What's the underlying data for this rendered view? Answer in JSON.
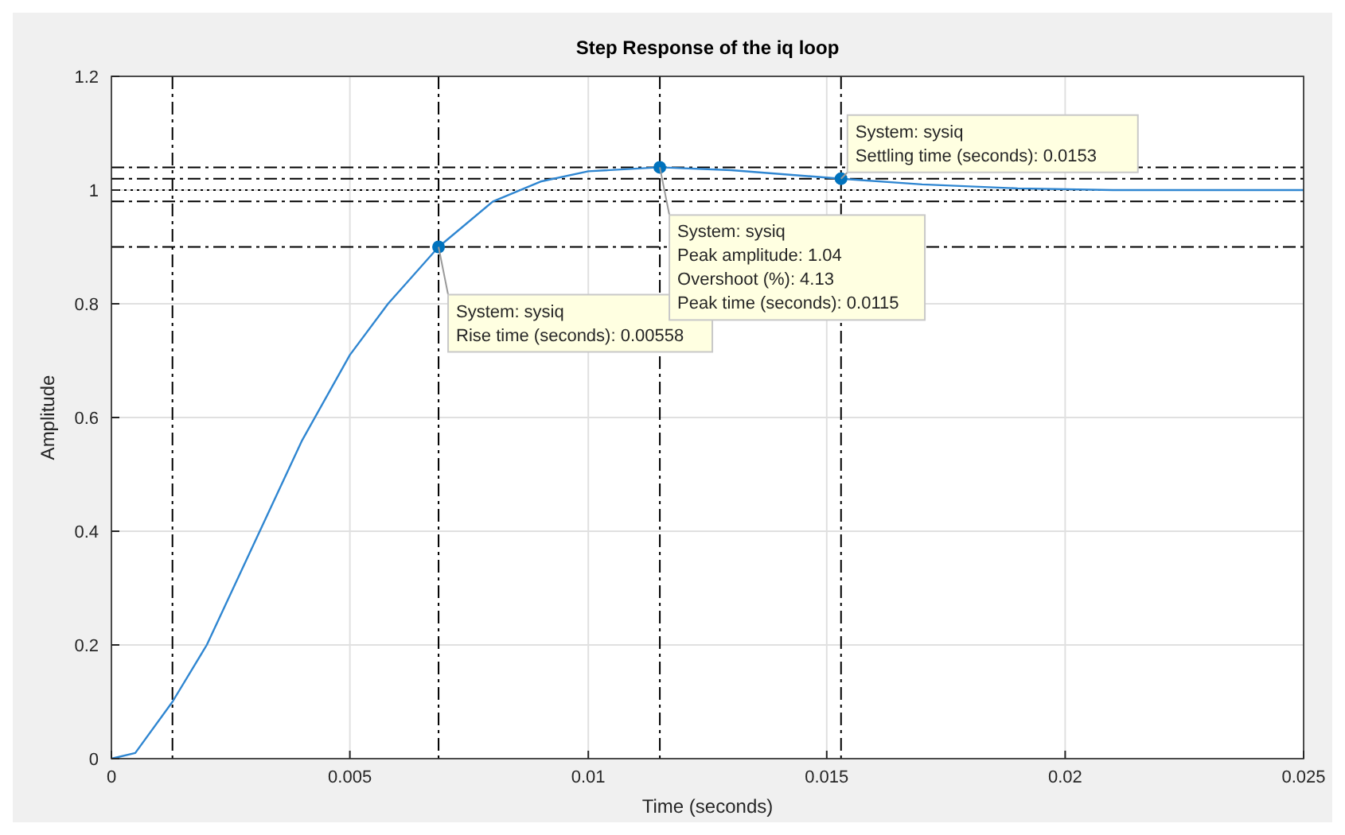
{
  "chart_data": {
    "type": "line",
    "title": "Step Response of the iq loop",
    "xlabel": "Time (seconds)",
    "ylabel": "Amplitude",
    "xlim": [
      0,
      0.025
    ],
    "ylim": [
      0,
      1.2
    ],
    "xticks": [
      0,
      0.005,
      0.01,
      0.015,
      0.02,
      0.025
    ],
    "yticks": [
      0,
      0.2,
      0.4,
      0.6,
      0.8,
      1,
      1.2
    ],
    "grid": true,
    "series": [
      {
        "type": "line",
        "color": "#2f86d1",
        "x": [
          0,
          0.0005,
          0.00128,
          0.002,
          0.003,
          0.004,
          0.005,
          0.0058,
          0.00686,
          0.008,
          0.009,
          0.01,
          0.0115,
          0.013,
          0.0153,
          0.017,
          0.019,
          0.021,
          0.025
        ],
        "values": [
          0,
          0.01,
          0.1,
          0.2,
          0.38,
          0.56,
          0.71,
          0.8,
          0.9,
          0.98,
          1.015,
          1.033,
          1.04,
          1.035,
          1.02,
          1.01,
          1.003,
          1.0,
          1.0
        ]
      },
      {
        "type": "scatter",
        "marker": "circle",
        "color": "#0072bd",
        "x": [
          0.00686,
          0.0115,
          0.0153
        ],
        "values": [
          0.9,
          1.04,
          1.02
        ]
      }
    ],
    "ref_lines": [
      {
        "axis": "x",
        "value": 0.00128,
        "color": "#000000",
        "line_style": "dashed"
      },
      {
        "axis": "x",
        "value": 0.00686,
        "color": "#000000",
        "line_style": "dashed"
      },
      {
        "axis": "x",
        "value": 0.0115,
        "color": "#000000",
        "line_style": "dashed"
      },
      {
        "axis": "x",
        "value": 0.0153,
        "color": "#000000",
        "line_style": "dashed"
      },
      {
        "axis": "y",
        "value": 0.9,
        "color": "#000000",
        "line_style": "dashed"
      },
      {
        "axis": "y",
        "value": 1.04,
        "color": "#000000",
        "line_style": "dashed"
      },
      {
        "axis": "y",
        "value": 1.02,
        "color": "#000000",
        "line_style": "dashed"
      },
      {
        "axis": "y",
        "value": 0.98,
        "color": "#000000",
        "line_style": "dashed"
      },
      {
        "axis": "y",
        "value": 1,
        "color": "#000000",
        "line_style": "dotted"
      }
    ],
    "annotations": [
      {
        "text": "System: sysiq\nRise time (seconds): 0.00558",
        "x": 0.00686,
        "y": 0.9
      },
      {
        "text": "System: sysiq\nPeak amplitude: 1.04\nOvershoot (%): 4.13\nPeak time (seconds): 0.0115",
        "x": 0.0115,
        "y": 1.04
      },
      {
        "text": "System: sysiq\nSettling time (seconds): 0.0153",
        "x": 0.0153,
        "y": 1.02
      }
    ]
  }
}
